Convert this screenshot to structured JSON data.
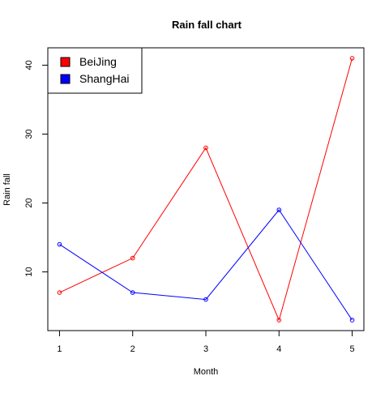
{
  "chart_data": {
    "type": "line",
    "title": "Rain fall chart",
    "xlabel": "Month",
    "ylabel": "Rain fall",
    "x": [
      1,
      2,
      3,
      4,
      5
    ],
    "xlim": [
      0.84,
      5.16
    ],
    "ylim": [
      1.48,
      42.52
    ],
    "xticks": [
      1,
      2,
      3,
      4,
      5
    ],
    "yticks": [
      10,
      20,
      30,
      40
    ],
    "grid": false,
    "legend_position": "top-left",
    "series": [
      {
        "name": "BeiJing",
        "color": "#ff0000",
        "values": [
          7,
          12,
          28,
          3,
          41
        ]
      },
      {
        "name": "ShangHai",
        "color": "#0000ff",
        "values": [
          14,
          7,
          6,
          19,
          3
        ]
      }
    ]
  }
}
